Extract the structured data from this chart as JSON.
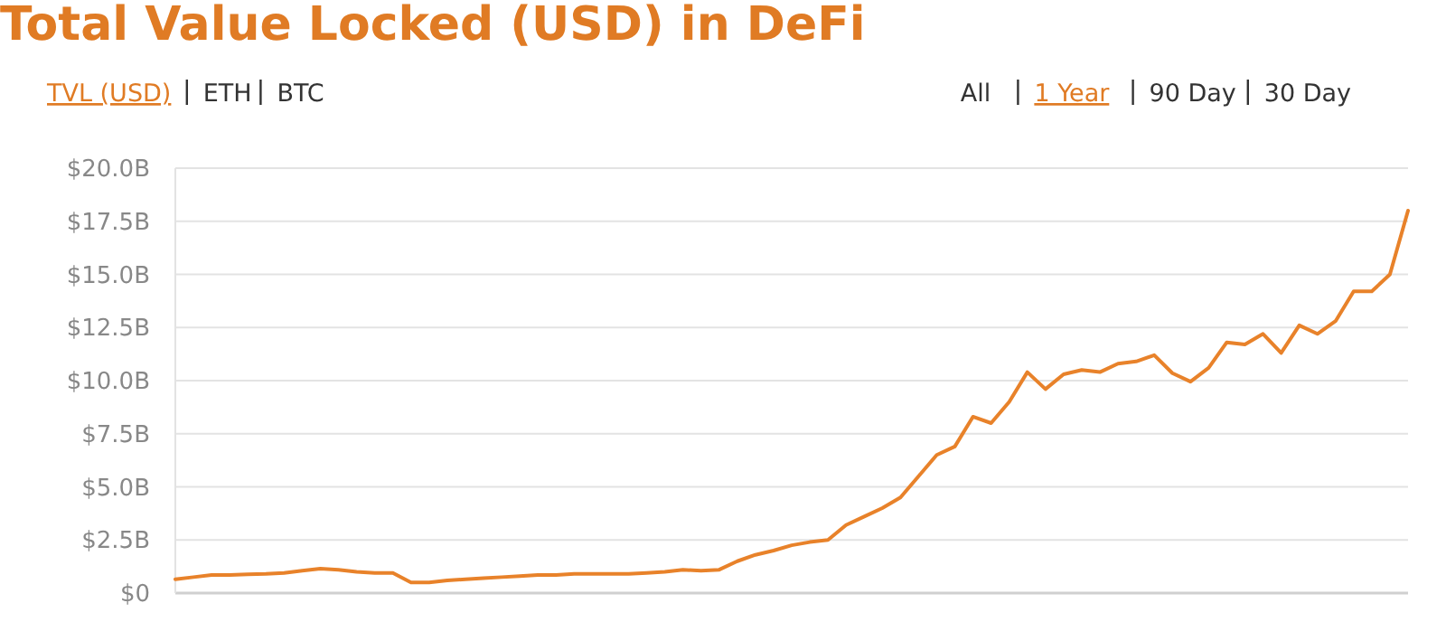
{
  "chart_data": {
    "type": "line",
    "title": "Total Value Locked (USD) in DeFi",
    "annotations": [
      "TVL (USD)",
      "ETH",
      "BTC",
      "All",
      "1 Year",
      "90 Day",
      "30 Day"
    ],
    "categories": [
      null,
      null,
      null,
      null,
      null,
      null,
      null,
      null,
      null,
      null,
      null,
      null,
      null,
      null,
      null,
      null,
      null,
      null,
      null,
      null,
      null,
      null,
      null,
      null,
      null,
      null,
      null,
      null,
      null,
      null,
      null,
      null,
      null,
      null,
      null,
      null,
      null,
      null,
      null,
      null,
      null,
      null,
      null,
      null,
      null,
      null,
      null,
      null,
      null,
      null,
      null,
      null,
      null,
      null,
      null,
      null,
      null,
      null,
      null,
      null,
      null,
      null,
      null,
      null,
      null,
      null,
      null,
      null,
      null
    ],
    "series": [
      {
        "color": "#e8822a",
        "values": [
          0.65,
          0.75,
          0.85,
          0.85,
          0.88,
          0.9,
          0.95,
          1.05,
          1.15,
          1.1,
          1.0,
          0.95,
          0.95,
          0.5,
          0.5,
          0.6,
          0.65,
          0.7,
          0.75,
          0.8,
          0.85,
          0.85,
          0.9,
          0.9,
          0.9,
          0.9,
          0.95,
          1.0,
          1.1,
          1.05,
          1.1,
          1.5,
          1.8,
          2.0,
          2.25,
          2.4,
          2.5,
          3.2,
          3.6,
          4.0,
          4.5,
          5.5,
          6.5,
          6.9,
          8.3,
          8.0,
          9.0,
          10.4,
          9.6,
          10.3,
          10.5,
          10.4,
          10.8,
          10.9,
          11.2,
          10.35,
          9.95,
          10.6,
          11.8,
          11.7,
          12.2,
          11.3,
          12.6,
          12.2,
          12.8,
          14.2,
          14.2,
          15.0,
          18.0
        ]
      }
    ],
    "ylim": [
      0,
      20
    ],
    "yticks": [
      {
        "value": 0,
        "label": "$0"
      },
      {
        "value": 2.5,
        "label": "$2.5B"
      },
      {
        "value": 5,
        "label": "$5.0B"
      },
      {
        "value": 7.5,
        "label": "$7.5B"
      },
      {
        "value": 10,
        "label": "$10.0B"
      },
      {
        "value": 12.5,
        "label": "$12.5B"
      },
      {
        "value": 15,
        "label": "$15.0B"
      },
      {
        "value": 17.5,
        "label": "$17.5B"
      },
      {
        "value": 20,
        "label": "$20.0B"
      }
    ],
    "grid": "y",
    "line_style": "solid"
  }
}
